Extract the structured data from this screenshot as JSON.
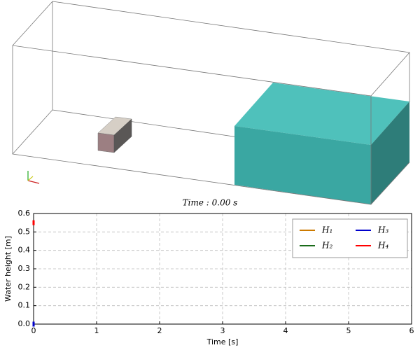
{
  "scene": {
    "time_label": "Time : 0.00 s"
  },
  "chart_data": {
    "type": "line",
    "xlabel": "Time [s]",
    "ylabel": "Water height [m]",
    "x": [
      0
    ],
    "series": [
      {
        "name": "H₁",
        "color": "#cc7a00",
        "values": [
          0
        ]
      },
      {
        "name": "H₂",
        "color": "#1a6b1a",
        "values": [
          0
        ]
      },
      {
        "name": "H₃",
        "color": "#0000cc",
        "values": [
          0
        ]
      },
      {
        "name": "H₄",
        "color": "#ff0000",
        "values": [
          0.55
        ]
      }
    ],
    "xlim": [
      0,
      6
    ],
    "xticks": [
      0,
      1,
      2,
      3,
      4,
      5,
      6
    ],
    "ylim": [
      0,
      0.6
    ],
    "yticks": [
      {
        "value": 0,
        "label": "0.0"
      },
      0.1,
      0.2,
      0.3,
      0.4,
      0.5,
      0.6
    ],
    "grid": true,
    "legend": "upper right"
  }
}
